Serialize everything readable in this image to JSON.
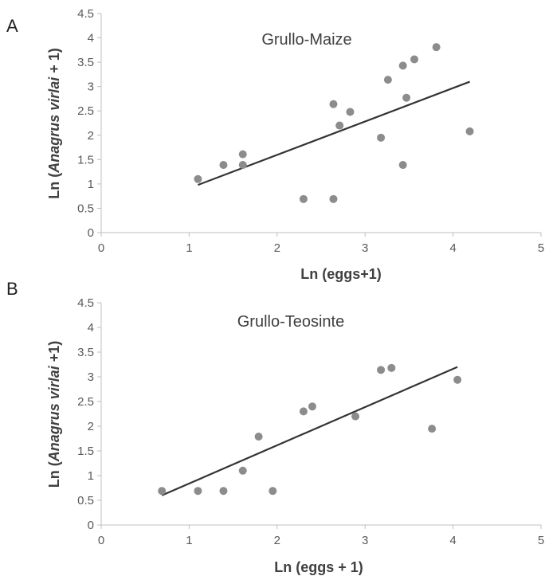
{
  "chart_data": [
    {
      "type": "scatter",
      "panel": "A",
      "title": "Grullo-Maize",
      "xlabel": "Ln (eggs+1)",
      "ylabel_prefix": "Ln (",
      "ylabel_italic": "Anagrus virlai",
      "ylabel_suffix": " + 1)",
      "xlim": [
        0,
        5
      ],
      "ylim": [
        0,
        4.5
      ],
      "x_ticks": [
        "0",
        "1",
        "2",
        "3",
        "4",
        "5"
      ],
      "y_ticks": [
        "0",
        "0.5",
        "1",
        "1.5",
        "2",
        "2.5",
        "3",
        "3.5",
        "4",
        "4.5"
      ],
      "grid": false,
      "point_color": "#8c8c8c",
      "line_color": "#333333",
      "points": [
        {
          "x": 1.1,
          "y": 1.1
        },
        {
          "x": 1.39,
          "y": 1.39
        },
        {
          "x": 1.61,
          "y": 1.61
        },
        {
          "x": 1.61,
          "y": 1.39
        },
        {
          "x": 2.3,
          "y": 0.69
        },
        {
          "x": 2.64,
          "y": 0.69
        },
        {
          "x": 2.64,
          "y": 2.64
        },
        {
          "x": 2.71,
          "y": 2.2
        },
        {
          "x": 2.83,
          "y": 2.48
        },
        {
          "x": 3.18,
          "y": 1.95
        },
        {
          "x": 3.26,
          "y": 3.14
        },
        {
          "x": 3.43,
          "y": 3.43
        },
        {
          "x": 3.43,
          "y": 1.39
        },
        {
          "x": 3.47,
          "y": 2.77
        },
        {
          "x": 3.56,
          "y": 3.56
        },
        {
          "x": 3.81,
          "y": 3.81
        },
        {
          "x": 4.19,
          "y": 2.08
        }
      ],
      "trendline": [
        {
          "x": 1.1,
          "y": 0.98
        },
        {
          "x": 4.19,
          "y": 3.1
        }
      ]
    },
    {
      "type": "scatter",
      "panel": "B",
      "title": "Grullo-Teosinte",
      "xlabel": "Ln (eggs + 1)",
      "ylabel_prefix": "Ln (",
      "ylabel_italic": "Anagrus virlai",
      "ylabel_suffix": " +1)",
      "xlim": [
        0,
        5
      ],
      "ylim": [
        0,
        4.5
      ],
      "x_ticks": [
        "0",
        "1",
        "2",
        "3",
        "4",
        "5"
      ],
      "y_ticks": [
        "0",
        "0.5",
        "1",
        "1.5",
        "2",
        "2.5",
        "3",
        "3.5",
        "4",
        "4.5"
      ],
      "grid": false,
      "point_color": "#8c8c8c",
      "line_color": "#333333",
      "points": [
        {
          "x": 0.69,
          "y": 0.69
        },
        {
          "x": 1.1,
          "y": 0.69
        },
        {
          "x": 1.39,
          "y": 0.69
        },
        {
          "x": 1.61,
          "y": 1.1
        },
        {
          "x": 1.79,
          "y": 1.79
        },
        {
          "x": 1.95,
          "y": 0.69
        },
        {
          "x": 2.3,
          "y": 2.3
        },
        {
          "x": 2.4,
          "y": 2.4
        },
        {
          "x": 2.89,
          "y": 2.2
        },
        {
          "x": 3.18,
          "y": 3.14
        },
        {
          "x": 3.3,
          "y": 3.18
        },
        {
          "x": 3.76,
          "y": 1.95
        },
        {
          "x": 4.05,
          "y": 2.94
        }
      ],
      "trendline": [
        {
          "x": 0.69,
          "y": 0.6
        },
        {
          "x": 4.05,
          "y": 3.2
        }
      ]
    }
  ]
}
